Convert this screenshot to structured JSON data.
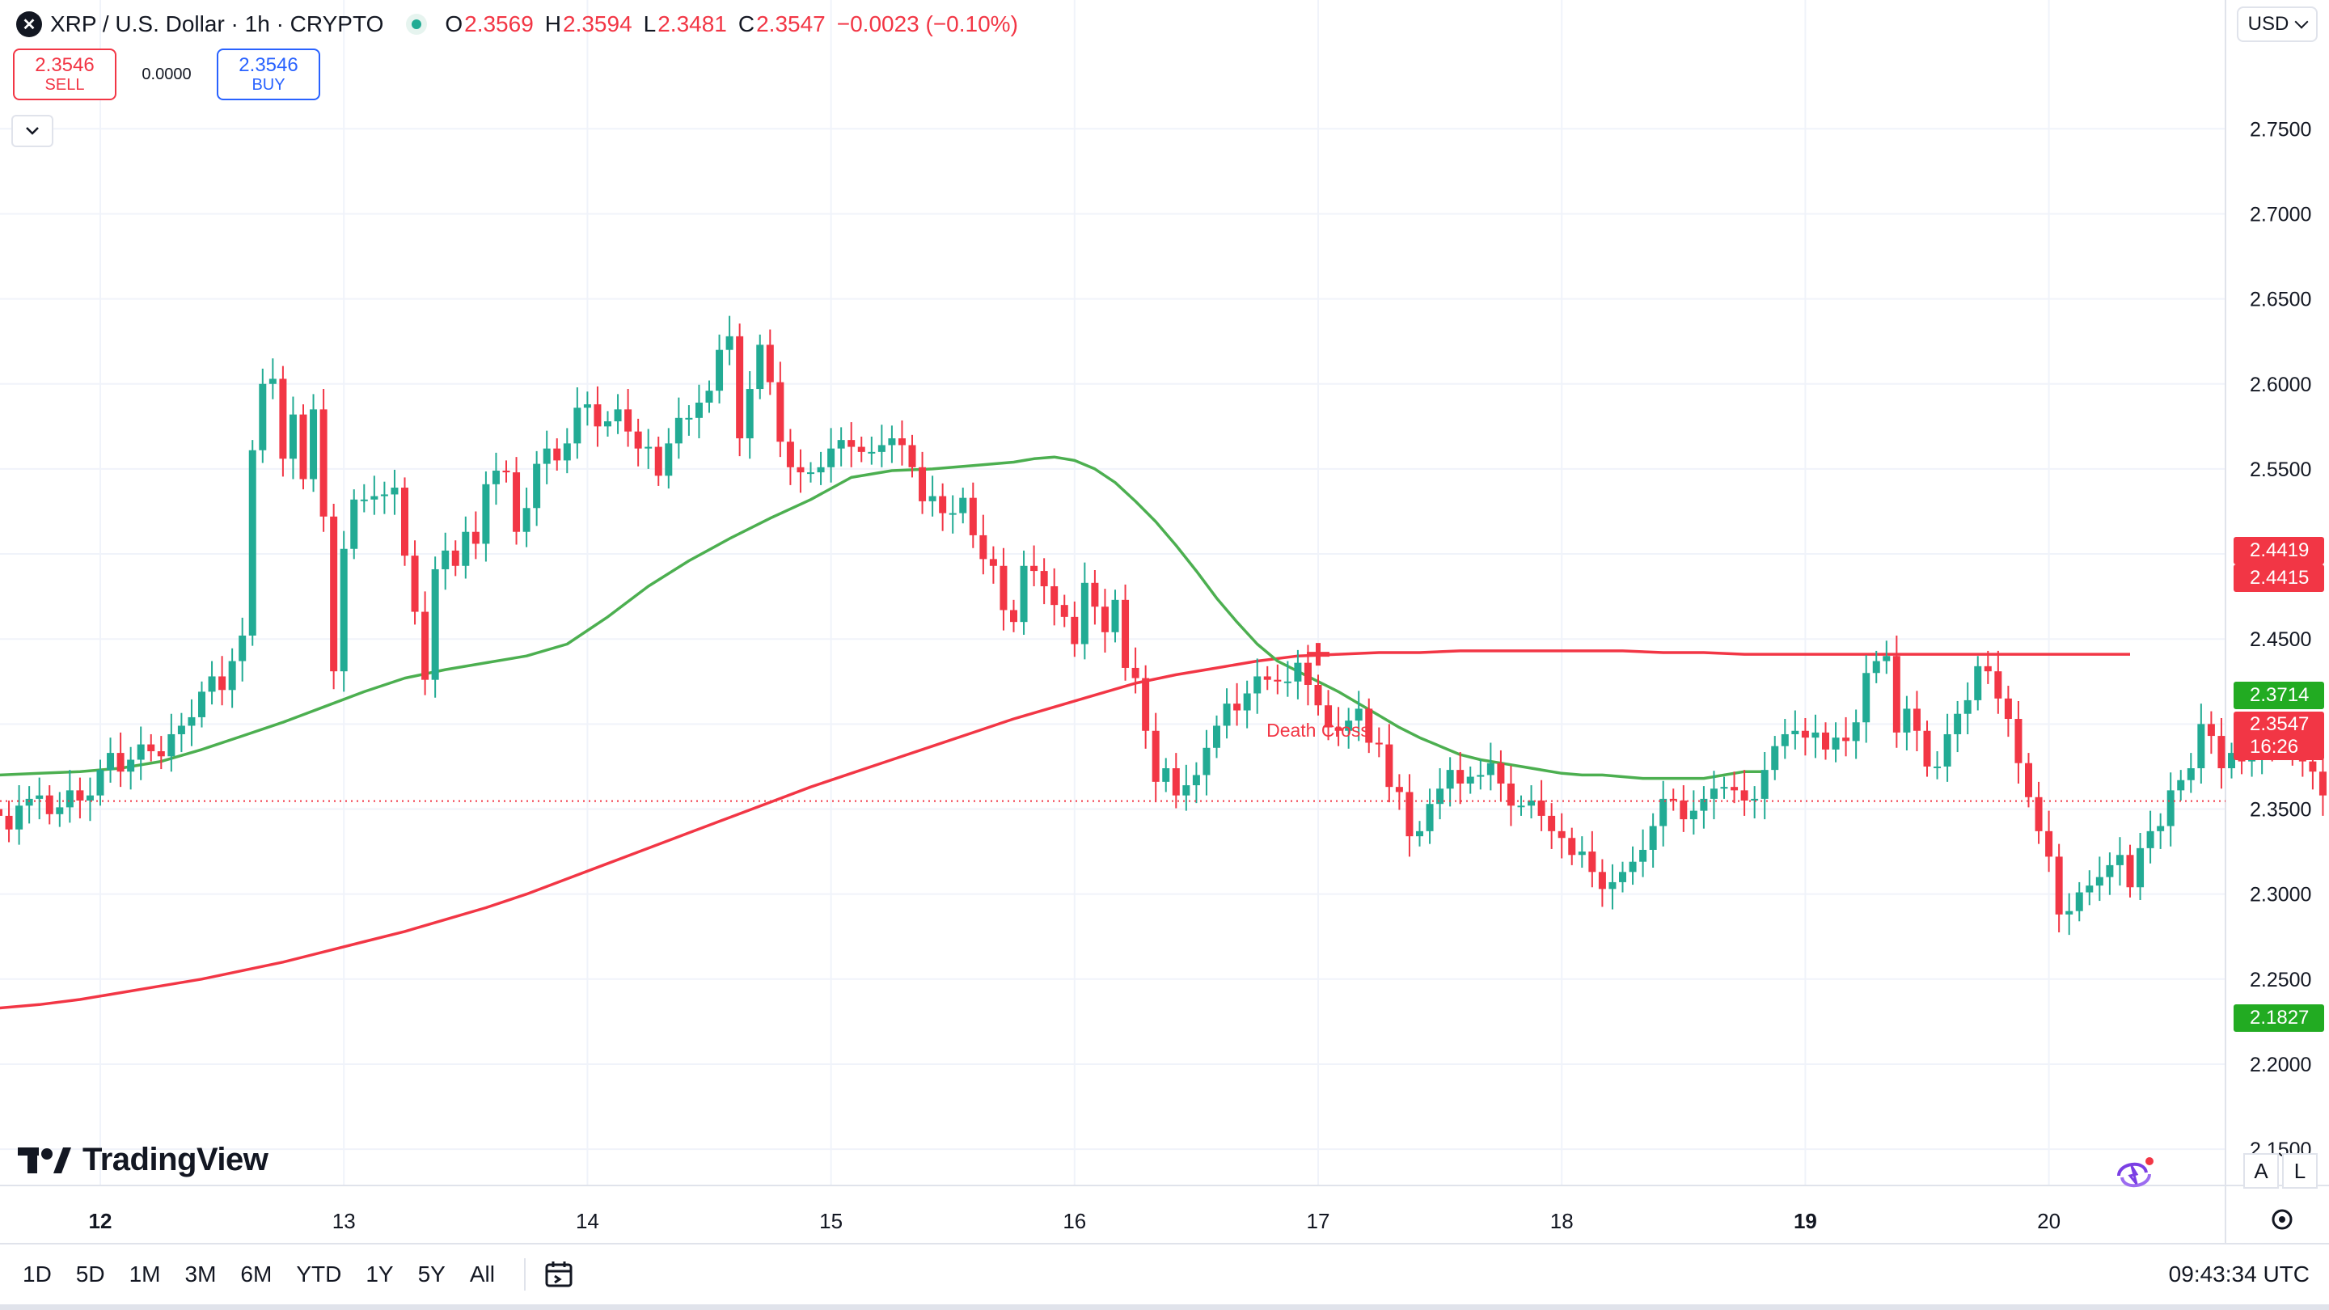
{
  "header": {
    "symbol_icon": "xrp-logo-icon",
    "title": "XRP / U.S. Dollar · 1h · CRYPTO",
    "status": "market-open-dot",
    "ohlc": [
      {
        "key": "O",
        "value": "2.3569"
      },
      {
        "key": "H",
        "value": "2.3594"
      },
      {
        "key": "L",
        "value": "2.3481"
      },
      {
        "key": "C",
        "value": "2.3547"
      }
    ],
    "change": "−0.0023 (−0.10%)"
  },
  "trade": {
    "sell_price": "2.3546",
    "sell_label": "SELL",
    "spread": "0.0000",
    "buy_price": "2.3546",
    "buy_label": "BUY"
  },
  "currency": "USD",
  "logo_text": "TradingView",
  "scale_buttons": {
    "auto": "A",
    "log": "L"
  },
  "footer": {
    "ranges": [
      "1D",
      "5D",
      "1M",
      "3M",
      "6M",
      "YTD",
      "1Y",
      "5Y",
      "All"
    ],
    "time": "09:43:34 UTC"
  },
  "colors": {
    "up": "#22ab94",
    "down": "#f23645",
    "ma_fast": "#4caf50",
    "ma_slow": "#f23645",
    "accent": "#2962ff"
  },
  "price_tags": [
    {
      "value": "2.4419",
      "color": "#f23645"
    },
    {
      "value": "2.4415",
      "color": "#f23645"
    },
    {
      "value": "2.3714",
      "color": "#22ab22"
    },
    {
      "value": "2.3547",
      "sub": "16:26",
      "color": "#f23645"
    },
    {
      "value": "2.1827",
      "color": "#22ab22"
    }
  ],
  "chart_data": {
    "type": "candlestick",
    "interval": "1h",
    "y_ticks": [
      2.15,
      2.2,
      2.25,
      2.3,
      2.35,
      2.4,
      2.45,
      2.5,
      2.55,
      2.6,
      2.65,
      2.7,
      2.75
    ],
    "y_tick_labels": [
      "2.1500",
      "2.2000",
      "2.2500",
      "2.3000",
      "2.3500",
      "2.4000",
      "2.4500",
      "2.5000",
      "2.5500",
      "2.6000",
      "2.6500",
      "2.7000",
      "2.7500"
    ],
    "ylim": [
      2.115,
      2.755
    ],
    "x_ticks": [
      {
        "label": "12",
        "hour": 0,
        "bold": true
      },
      {
        "label": "13",
        "hour": 24,
        "bold": false
      },
      {
        "label": "14",
        "hour": 48,
        "bold": false
      },
      {
        "label": "15",
        "hour": 72,
        "bold": false
      },
      {
        "label": "16",
        "hour": 96,
        "bold": false
      },
      {
        "label": "17",
        "hour": 120,
        "bold": false
      },
      {
        "label": "18",
        "hour": 144,
        "bold": false
      },
      {
        "label": "19",
        "hour": 168,
        "bold": true
      },
      {
        "label": "20",
        "hour": 192,
        "bold": false
      }
    ],
    "xlim": [
      -10,
      220
    ],
    "close_series": [
      2.346,
      2.338,
      2.352,
      2.356,
      2.358,
      2.347,
      2.351,
      2.361,
      2.355,
      2.358,
      2.373,
      2.383,
      2.372,
      2.379,
      2.388,
      2.384,
      2.381,
      2.394,
      2.399,
      2.404,
      2.419,
      2.428,
      2.42,
      2.437,
      2.452,
      2.561,
      2.6,
      2.603,
      2.556,
      2.582,
      2.544,
      2.585,
      2.522,
      2.431,
      2.503,
      2.532,
      2.532,
      2.534,
      2.535,
      2.539,
      2.499,
      2.466,
      2.426,
      2.491,
      2.502,
      2.493,
      2.513,
      2.506,
      2.541,
      2.549,
      2.548,
      2.513,
      2.527,
      2.553,
      2.562,
      2.555,
      2.565,
      2.586,
      2.588,
      2.575,
      2.578,
      2.585,
      2.572,
      2.562,
      2.563,
      2.546,
      2.565,
      2.58,
      2.58,
      2.589,
      2.596,
      2.62,
      2.628,
      2.568,
      2.597,
      2.623,
      2.601,
      2.566,
      2.551,
      2.548,
      2.548,
      2.551,
      2.562,
      2.567,
      2.563,
      2.56,
      2.56,
      2.564,
      2.568,
      2.564,
      2.551,
      2.531,
      2.534,
      2.524,
      2.524,
      2.533,
      2.511,
      2.497,
      2.493,
      2.467,
      2.46,
      2.493,
      2.49,
      2.481,
      2.47,
      2.463,
      2.447,
      2.483,
      2.469,
      2.454,
      2.473,
      2.433,
      2.427,
      2.396,
      2.366,
      2.374,
      2.358,
      2.364,
      2.37,
      2.386,
      2.399,
      2.412,
      2.408,
      2.418,
      2.428,
      2.426,
      2.425,
      2.425,
      2.436,
      2.423,
      2.411,
      2.398,
      2.396,
      2.402,
      2.409,
      2.389,
      2.388,
      2.363,
      2.36,
      2.334,
      2.337,
      2.353,
      2.362,
      2.373,
      2.365,
      2.369,
      2.37,
      2.377,
      2.365,
      2.352,
      2.352,
      2.355,
      2.346,
      2.337,
      2.333,
      2.323,
      2.325,
      2.313,
      2.303,
      2.307,
      2.313,
      2.319,
      2.326,
      2.34,
      2.356,
      2.355,
      2.344,
      2.349,
      2.356,
      2.362,
      2.363,
      2.361,
      2.355,
      2.356,
      2.373,
      2.387,
      2.394,
      2.396,
      2.392,
      2.395,
      2.385,
      2.392,
      2.39,
      2.401,
      2.43,
      2.437,
      2.44,
      2.395,
      2.409,
      2.396,
      2.375,
      2.375,
      2.394,
      2.406,
      2.414,
      2.434,
      2.431,
      2.415,
      2.403,
      2.377,
      2.357,
      2.337,
      2.322,
      2.288,
      2.29,
      2.301,
      2.305,
      2.31,
      2.317,
      2.323,
      2.304,
      2.327,
      2.337,
      2.34,
      2.361,
      2.367,
      2.374,
      2.4,
      2.393,
      2.374,
      2.383,
      2.378,
      2.381,
      2.396,
      2.39,
      2.389,
      2.383,
      2.378,
      2.372,
      2.358,
      2.361
    ],
    "ma_fast_series": [
      2.37,
      2.371,
      2.372,
      2.374,
      2.378,
      2.385,
      2.393,
      2.401,
      2.41,
      2.419,
      2.427,
      2.432,
      2.436,
      2.44,
      2.447,
      2.463,
      2.481,
      2.496,
      2.509,
      2.521,
      2.532,
      2.545,
      2.549,
      2.55,
      2.552,
      2.553,
      2.554,
      2.556,
      2.557,
      2.555,
      2.55,
      2.542,
      2.531,
      2.519,
      2.505,
      2.49,
      2.474,
      2.46,
      2.447,
      2.437,
      2.431,
      2.425,
      2.419,
      2.412,
      2.405,
      2.398,
      2.392,
      2.387,
      2.382,
      2.379,
      2.377,
      2.375,
      2.373,
      2.371,
      2.37,
      2.37,
      2.369,
      2.368,
      2.368,
      2.368,
      2.368,
      2.37,
      2.372,
      2.372
    ],
    "ma_fast_hours": [
      -10,
      -6,
      -2,
      2,
      6,
      10,
      14,
      18,
      22,
      26,
      30,
      34,
      38,
      42,
      46,
      50,
      54,
      58,
      62,
      66,
      70,
      74,
      78,
      82,
      86,
      88,
      90,
      92,
      94,
      96,
      98,
      100,
      102,
      104,
      106,
      108,
      110,
      112,
      114,
      116,
      118,
      120,
      122,
      124,
      126,
      128,
      130,
      132,
      134,
      136,
      138,
      140,
      142,
      144,
      146,
      148,
      150,
      152,
      154,
      156,
      158,
      160,
      162,
      164
    ],
    "ma_slow_series": [
      2.233,
      2.235,
      2.238,
      2.242,
      2.246,
      2.25,
      2.255,
      2.26,
      2.266,
      2.272,
      2.278,
      2.285,
      2.292,
      2.3,
      2.309,
      2.318,
      2.327,
      2.336,
      2.345,
      2.354,
      2.363,
      2.371,
      2.379,
      2.387,
      2.395,
      2.403,
      2.41,
      2.417,
      2.424,
      2.429,
      2.433,
      2.437,
      2.44,
      2.441,
      2.442,
      2.442,
      2.443,
      2.443,
      2.443,
      2.443,
      2.443,
      2.442,
      2.442,
      2.441,
      2.441,
      2.441,
      2.441,
      2.441
    ],
    "ma_slow_hours": [
      -10,
      -6,
      -2,
      2,
      6,
      10,
      14,
      18,
      22,
      26,
      30,
      34,
      38,
      42,
      46,
      50,
      54,
      58,
      62,
      66,
      70,
      74,
      78,
      82,
      86,
      90,
      94,
      98,
      102,
      106,
      110,
      114,
      118,
      122,
      126,
      130,
      134,
      138,
      142,
      146,
      150,
      154,
      158,
      162,
      166,
      170,
      176,
      200
    ],
    "annotation": {
      "label": "Death Cross",
      "hour": 120,
      "price": 2.441
    },
    "last_price_line": 2.3547
  }
}
